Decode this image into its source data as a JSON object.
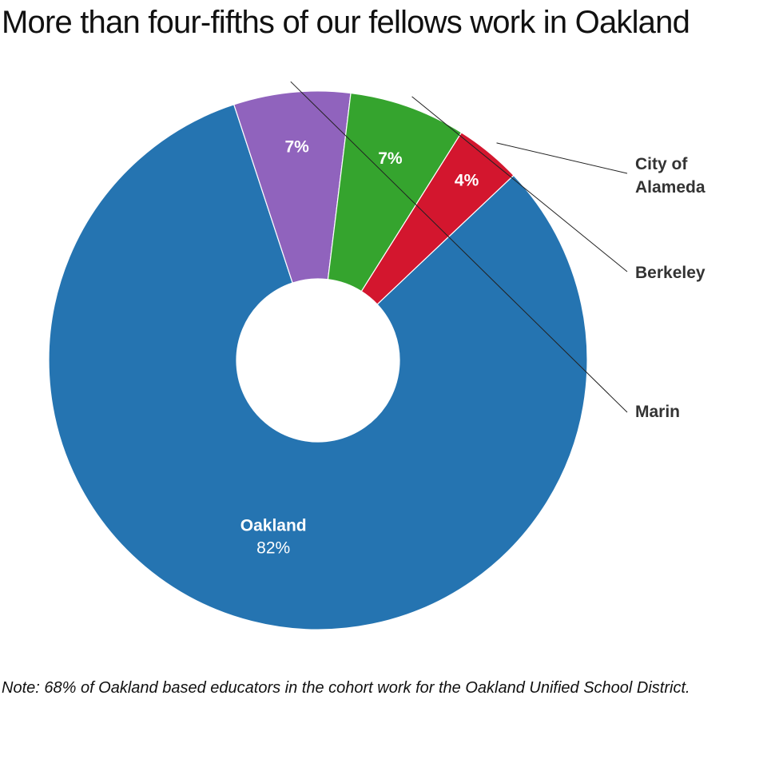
{
  "title": "More than four-fifths of our fellows work in Oakland",
  "note": "Note: 68% of Oakland based educators in the cohort work for the Oakland Unified School District.",
  "chart_data": {
    "type": "pie",
    "variant": "donut",
    "title": "More than four-fifths of our fellows work in Oakland",
    "slices": [
      {
        "label": "Oakland",
        "value": 82,
        "value_label": "82%",
        "color": "#2574b1",
        "label_style": "inside"
      },
      {
        "label": "Marin",
        "value": 7,
        "value_label": "7%",
        "color": "#9063bd",
        "label_style": "outside"
      },
      {
        "label": "Berkeley",
        "value": 7,
        "value_label": "7%",
        "color": "#35a42e",
        "label_style": "outside"
      },
      {
        "label": "City of Alameda",
        "label_lines": [
          "City of",
          "Alameda"
        ],
        "value": 4,
        "value_label": "4%",
        "color": "#d3162e",
        "label_style": "outside"
      }
    ],
    "legend": "none",
    "annotation": "Note: 68% of Oakland based educators in the cohort work for the Oakland Unified School District."
  }
}
